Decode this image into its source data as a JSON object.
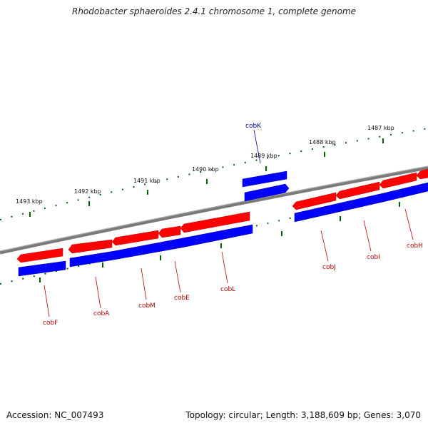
{
  "title": "Rhodobacter sphaeroides 2.4.1 chromosome 1, complete genome",
  "accession": "Accession: NC_007493",
  "summary": "Topology: circular; Length: 3,188,609 bp; Genes: 3,070",
  "colors": {
    "forward": "#ff0000",
    "reverse": "#0000ff",
    "backbone": "#808080",
    "ticks": "#006400",
    "label_red": "#cc0000",
    "label_blue": "#0000cc"
  },
  "kbp_labels": [
    "1493 kbp",
    "1492 kbp",
    "1491 kbp",
    "1490 kbp",
    "1489 kbp",
    "1488 kbp",
    "1487 kbp"
  ],
  "genes": [
    "cobF",
    "cobA",
    "cobM",
    "cobE",
    "cobL",
    "cobK",
    "cobJ",
    "cobI",
    "cobH"
  ]
}
